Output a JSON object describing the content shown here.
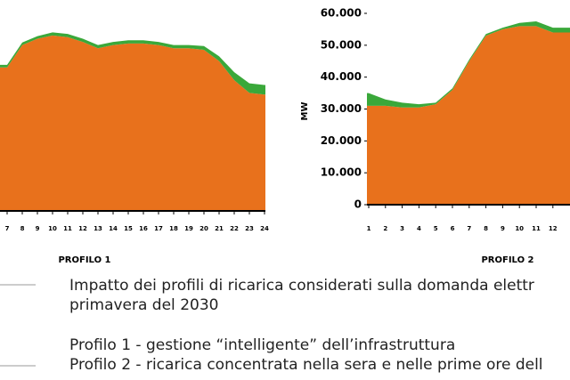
{
  "chart_data": [
    {
      "type": "stacked-area",
      "title": "PROFILO 1",
      "x": [
        7,
        8,
        9,
        10,
        11,
        12,
        13,
        14,
        15,
        16,
        17,
        18,
        19,
        20,
        21,
        22,
        23,
        24
      ],
      "series": [
        {
          "name": "Profilo 1 - gestione “intelligente” dell’infrastruttura",
          "color": "#e8711c",
          "values": [
            45000,
            52000,
            54000,
            55000,
            54500,
            53000,
            51000,
            52000,
            52500,
            52500,
            52000,
            51000,
            51000,
            50500,
            47000,
            41000,
            37000,
            36500
          ]
        },
        {
          "name": "Profilo 2 - ricarica concentrata nella sera e nelle prime ore dell",
          "color": "#3aa83a",
          "values": [
            800,
            800,
            800,
            1000,
            1000,
            1000,
            1000,
            1000,
            1000,
            1000,
            1000,
            1000,
            1000,
            1200,
            1500,
            2500,
            3000,
            3000
          ]
        }
      ],
      "ylim": [
        0,
        60000
      ]
    },
    {
      "type": "stacked-area",
      "title": "PROFILO 2",
      "y_label": "MW",
      "x": [
        1,
        2,
        3,
        4,
        5,
        6,
        7,
        8,
        9,
        10,
        11,
        12
      ],
      "series": [
        {
          "name": "Profilo 1 - gestione “intelligente” dell’infrastruttura",
          "color": "#e8711c",
          "values": [
            31000,
            31000,
            30500,
            30500,
            31500,
            36000,
            45000,
            53000,
            55000,
            56000,
            56000,
            54000
          ]
        },
        {
          "name": "Profilo 2 - ricarica concentrata nella sera e nelle prime ore dell",
          "color": "#3aa83a",
          "values": [
            4000,
            2000,
            1500,
            1000,
            500,
            500,
            500,
            500,
            500,
            1000,
            1500,
            1500
          ]
        }
      ],
      "ylim": [
        0,
        60000
      ],
      "yticks": [
        0,
        {
          "value": 10000,
          "label": "10.000"
        },
        {
          "value": 20000,
          "label": "20.000"
        },
        {
          "value": 30000,
          "label": "30.000"
        },
        {
          "value": 40000,
          "label": "40.000"
        },
        {
          "value": 50000,
          "label": "50.000"
        },
        {
          "value": 60000,
          "label": "60.000"
        }
      ]
    }
  ],
  "caption": [
    "Impatto dei profili di ricarica considerati sulla domanda elettr",
    "primavera del 2030"
  ]
}
